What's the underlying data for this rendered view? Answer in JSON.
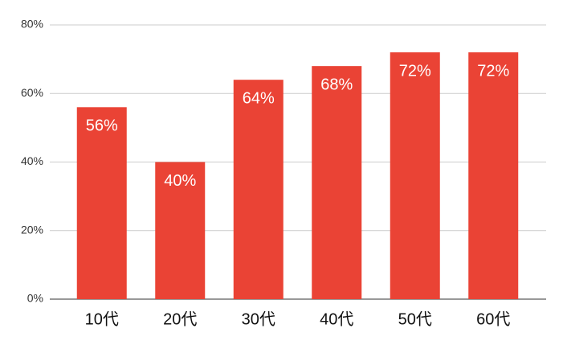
{
  "chart_data": {
    "type": "bar",
    "categories": [
      "10代",
      "20代",
      "30代",
      "40代",
      "50代",
      "60代"
    ],
    "values": [
      56,
      40,
      64,
      68,
      72,
      72
    ],
    "value_labels": [
      "56%",
      "40%",
      "64%",
      "68%",
      "72%",
      "72%"
    ],
    "color": "#ea4335",
    "ylim": [
      0,
      80
    ],
    "yticks": [
      {
        "value": 0,
        "label": "0%"
      },
      {
        "value": 20,
        "label": "20%"
      },
      {
        "value": 40,
        "label": "40%"
      },
      {
        "value": 60,
        "label": "60%"
      },
      {
        "value": 80,
        "label": "80%"
      }
    ],
    "grid": true
  }
}
